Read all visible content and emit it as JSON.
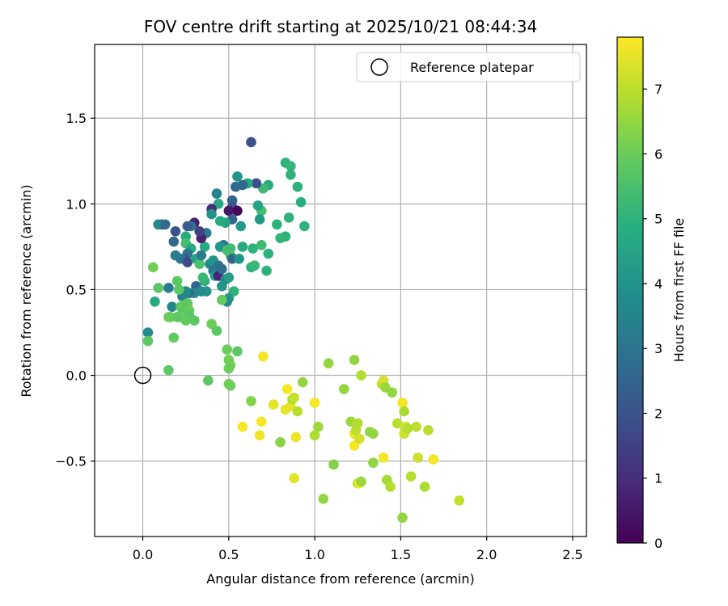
{
  "chart_data": {
    "type": "scatter",
    "title": "FOV centre drift starting at 2025/10/21 08:44:34",
    "xlabel": "Angular distance from reference (arcmin)",
    "ylabel": "Rotation from reference (arcmin)",
    "xlim": [
      -0.28,
      2.58
    ],
    "ylim": [
      -0.94,
      1.93
    ],
    "xticks": [
      0.0,
      0.5,
      1.0,
      1.5,
      2.0,
      2.5
    ],
    "xtick_labels": [
      "0.0",
      "0.5",
      "1.0",
      "1.5",
      "2.0",
      "2.5"
    ],
    "yticks": [
      -0.5,
      0.0,
      0.5,
      1.0,
      1.5
    ],
    "ytick_labels": [
      "−0.5",
      "0.0",
      "0.5",
      "1.0",
      "1.5"
    ],
    "grid": true,
    "colormap": "viridis",
    "colorbar": {
      "label": "Hours from first FF file",
      "range": [
        0,
        7.8
      ],
      "ticks": [
        0,
        1,
        2,
        3,
        4,
        5,
        6,
        7
      ],
      "tick_labels": [
        "0",
        "1",
        "2",
        "3",
        "4",
        "5",
        "6",
        "7"
      ]
    },
    "legend": {
      "position": "top-right",
      "entries": [
        "Reference platepar"
      ]
    },
    "reference_point": {
      "x": 0.0,
      "y": 0.0
    },
    "points": [
      [
        0.63,
        1.36,
        1.9
      ],
      [
        0.83,
        1.24,
        5.0
      ],
      [
        0.86,
        1.22,
        5.1
      ],
      [
        0.86,
        1.17,
        5.0
      ],
      [
        0.9,
        1.1,
        5.0
      ],
      [
        0.92,
        1.01,
        4.9
      ],
      [
        0.94,
        0.87,
        5.0
      ],
      [
        0.85,
        0.92,
        5.0
      ],
      [
        0.83,
        0.81,
        5.0
      ],
      [
        0.8,
        0.8,
        5.1
      ],
      [
        0.78,
        0.88,
        5.0
      ],
      [
        0.73,
        1.11,
        4.7
      ],
      [
        0.7,
        1.09,
        5.3
      ],
      [
        0.69,
        0.96,
        5.4
      ],
      [
        0.67,
        0.99,
        4.5
      ],
      [
        0.68,
        0.91,
        4.2
      ],
      [
        0.66,
        1.12,
        1.9
      ],
      [
        0.61,
        1.12,
        4.7
      ],
      [
        0.58,
        1.11,
        2.6
      ],
      [
        0.55,
        1.16,
        4.0
      ],
      [
        0.54,
        1.1,
        2.6
      ],
      [
        0.52,
        1.02,
        2.5
      ],
      [
        0.52,
        0.98,
        2.0
      ],
      [
        0.5,
        0.96,
        0.5
      ],
      [
        0.55,
        0.96,
        0.2
      ],
      [
        0.52,
        0.91,
        2.5
      ],
      [
        0.48,
        0.89,
        4.5
      ],
      [
        0.57,
        0.87,
        4.2
      ],
      [
        0.45,
        0.9,
        4.7
      ],
      [
        0.44,
        1.0,
        4.6
      ],
      [
        0.43,
        1.06,
        3.5
      ],
      [
        0.4,
        0.97,
        1.0
      ],
      [
        0.4,
        0.94,
        4.0
      ],
      [
        0.37,
        0.83,
        3.2
      ],
      [
        0.36,
        0.75,
        4.7
      ],
      [
        0.34,
        0.8,
        0.7
      ],
      [
        0.33,
        0.84,
        1.5
      ],
      [
        0.3,
        0.89,
        0.7
      ],
      [
        0.28,
        0.87,
        3.0
      ],
      [
        0.26,
        0.87,
        2.3
      ],
      [
        0.25,
        0.81,
        4.7
      ],
      [
        0.25,
        0.77,
        5.4
      ],
      [
        0.28,
        0.74,
        4.7
      ],
      [
        0.26,
        0.71,
        3.0
      ],
      [
        0.24,
        0.68,
        2.0
      ],
      [
        0.22,
        0.68,
        3.0
      ],
      [
        0.19,
        0.7,
        3.2
      ],
      [
        0.18,
        0.78,
        2.6
      ],
      [
        0.19,
        0.84,
        2.0
      ],
      [
        0.11,
        0.88,
        2.0
      ],
      [
        0.09,
        0.88,
        3.7
      ],
      [
        0.13,
        0.88,
        2.7
      ],
      [
        0.26,
        0.66,
        1.8
      ],
      [
        0.31,
        0.68,
        4.5
      ],
      [
        0.33,
        0.65,
        5.5
      ],
      [
        0.34,
        0.7,
        3.2
      ],
      [
        0.39,
        0.65,
        3.7
      ],
      [
        0.41,
        0.67,
        4.0
      ],
      [
        0.41,
        0.61,
        3.0
      ],
      [
        0.42,
        0.58,
        4.3
      ],
      [
        0.44,
        0.58,
        0.8
      ],
      [
        0.44,
        0.64,
        3.0
      ],
      [
        0.46,
        0.62,
        2.8
      ],
      [
        0.47,
        0.76,
        3.0
      ],
      [
        0.45,
        0.75,
        4.0
      ],
      [
        0.49,
        0.73,
        5.4
      ],
      [
        0.51,
        0.74,
        5.3
      ],
      [
        0.51,
        0.7,
        5.5
      ],
      [
        0.52,
        0.68,
        2.6
      ],
      [
        0.56,
        0.68,
        4.0
      ],
      [
        0.58,
        0.75,
        4.7
      ],
      [
        0.64,
        0.74,
        5.0
      ],
      [
        0.69,
        0.76,
        5.3
      ],
      [
        0.73,
        0.71,
        5.0
      ],
      [
        0.63,
        0.63,
        5.0
      ],
      [
        0.65,
        0.64,
        5.2
      ],
      [
        0.72,
        0.61,
        5.0
      ],
      [
        0.48,
        0.56,
        3.4
      ],
      [
        0.5,
        0.57,
        4.4
      ],
      [
        0.46,
        0.52,
        4.0
      ],
      [
        0.53,
        0.49,
        5.0
      ],
      [
        0.5,
        0.45,
        4.2
      ],
      [
        0.49,
        0.43,
        3.7
      ],
      [
        0.46,
        0.44,
        5.9
      ],
      [
        0.37,
        0.49,
        4.0
      ],
      [
        0.36,
        0.55,
        5.0
      ],
      [
        0.35,
        0.57,
        5.2
      ],
      [
        0.31,
        0.52,
        2.6
      ],
      [
        0.3,
        0.48,
        3.7
      ],
      [
        0.34,
        0.49,
        3.7
      ],
      [
        0.27,
        0.48,
        3.0
      ],
      [
        0.25,
        0.49,
        3.7
      ],
      [
        0.23,
        0.46,
        3.5
      ],
      [
        0.21,
        0.5,
        5.8
      ],
      [
        0.2,
        0.55,
        5.8
      ],
      [
        0.15,
        0.51,
        3.2
      ],
      [
        0.09,
        0.51,
        5.8
      ],
      [
        0.06,
        0.63,
        6.1
      ],
      [
        0.07,
        0.43,
        4.7
      ],
      [
        0.17,
        0.4,
        3.6
      ],
      [
        0.22,
        0.4,
        5.8
      ],
      [
        0.24,
        0.41,
        6.0
      ],
      [
        0.26,
        0.42,
        5.8
      ],
      [
        0.25,
        0.38,
        5.7
      ],
      [
        0.27,
        0.38,
        6.0
      ],
      [
        0.27,
        0.35,
        5.7
      ],
      [
        0.23,
        0.36,
        5.8
      ],
      [
        0.22,
        0.34,
        6.0
      ],
      [
        0.2,
        0.34,
        5.8
      ],
      [
        0.16,
        0.34,
        5.8
      ],
      [
        0.15,
        0.34,
        6.0
      ],
      [
        0.25,
        0.32,
        5.9
      ],
      [
        0.3,
        0.32,
        5.8
      ],
      [
        0.4,
        0.3,
        6.0
      ],
      [
        0.43,
        0.26,
        5.8
      ],
      [
        0.18,
        0.22,
        5.9
      ],
      [
        0.03,
        0.25,
        3.7
      ],
      [
        0.03,
        0.2,
        5.8
      ],
      [
        0.15,
        0.03,
        5.8
      ],
      [
        0.49,
        0.15,
        6.0
      ],
      [
        0.55,
        0.14,
        5.8
      ],
      [
        0.5,
        0.09,
        6.1
      ],
      [
        0.51,
        0.06,
        6.1
      ],
      [
        0.5,
        0.04,
        6.0
      ],
      [
        0.38,
        -0.03,
        5.8
      ],
      [
        0.5,
        -0.05,
        6.1
      ],
      [
        0.51,
        -0.06,
        6.0
      ],
      [
        0.63,
        -0.15,
        6.3
      ],
      [
        0.58,
        -0.3,
        7.7
      ],
      [
        0.69,
        -0.27,
        7.7
      ],
      [
        0.68,
        -0.35,
        7.6
      ],
      [
        0.7,
        0.11,
        7.7
      ],
      [
        0.76,
        -0.17,
        7.5
      ],
      [
        0.8,
        -0.39,
        6.4
      ],
      [
        0.83,
        -0.2,
        7.5
      ],
      [
        0.84,
        -0.08,
        7.7
      ],
      [
        0.86,
        -0.18,
        7.5
      ],
      [
        0.87,
        -0.14,
        6.8
      ],
      [
        0.88,
        -0.13,
        7.1
      ],
      [
        0.88,
        -0.6,
        7.5
      ],
      [
        0.89,
        -0.36,
        7.6
      ],
      [
        0.9,
        -0.21,
        7.0
      ],
      [
        0.93,
        -0.04,
        6.5
      ],
      [
        1.0,
        -0.35,
        6.8
      ],
      [
        1.0,
        -0.16,
        7.7
      ],
      [
        1.02,
        -0.3,
        6.6
      ],
      [
        1.05,
        -0.72,
        6.5
      ],
      [
        1.08,
        0.07,
        6.5
      ],
      [
        1.11,
        -0.52,
        6.3
      ],
      [
        1.17,
        -0.08,
        6.5
      ],
      [
        1.21,
        -0.27,
        6.6
      ],
      [
        1.23,
        0.09,
        6.5
      ],
      [
        1.23,
        -0.34,
        7.6
      ],
      [
        1.23,
        -0.41,
        7.7
      ],
      [
        1.24,
        -0.32,
        7.0
      ],
      [
        1.25,
        -0.63,
        6.9
      ],
      [
        1.25,
        -0.28,
        6.9
      ],
      [
        1.26,
        -0.37,
        7.3
      ],
      [
        1.26,
        -0.63,
        7.7
      ],
      [
        1.27,
        0.0,
        6.9
      ],
      [
        1.27,
        -0.62,
        6.6
      ],
      [
        1.32,
        -0.33,
        6.5
      ],
      [
        1.34,
        -0.51,
        6.5
      ],
      [
        1.34,
        -0.34,
        6.5
      ],
      [
        1.39,
        -0.05,
        7.0
      ],
      [
        1.4,
        -0.03,
        7.3
      ],
      [
        1.4,
        -0.48,
        7.7
      ],
      [
        1.41,
        -0.07,
        6.6
      ],
      [
        1.42,
        -0.61,
        6.7
      ],
      [
        1.44,
        -0.65,
        6.9
      ],
      [
        1.45,
        -0.1,
        6.5
      ],
      [
        1.48,
        -0.28,
        7.0
      ],
      [
        1.51,
        -0.16,
        7.7
      ],
      [
        1.51,
        -0.83,
        6.5
      ],
      [
        1.52,
        -0.21,
        6.8
      ],
      [
        1.52,
        -0.34,
        7.2
      ],
      [
        1.53,
        -0.3,
        7.3
      ],
      [
        1.54,
        -0.31,
        6.9
      ],
      [
        1.56,
        -0.59,
        6.9
      ],
      [
        1.59,
        -0.3,
        7.0
      ],
      [
        1.6,
        -0.48,
        7.2
      ],
      [
        1.64,
        -0.65,
        6.8
      ],
      [
        1.66,
        -0.32,
        7.0
      ],
      [
        1.69,
        -0.49,
        7.7
      ],
      [
        1.84,
        -0.73,
        7.1
      ]
    ]
  }
}
